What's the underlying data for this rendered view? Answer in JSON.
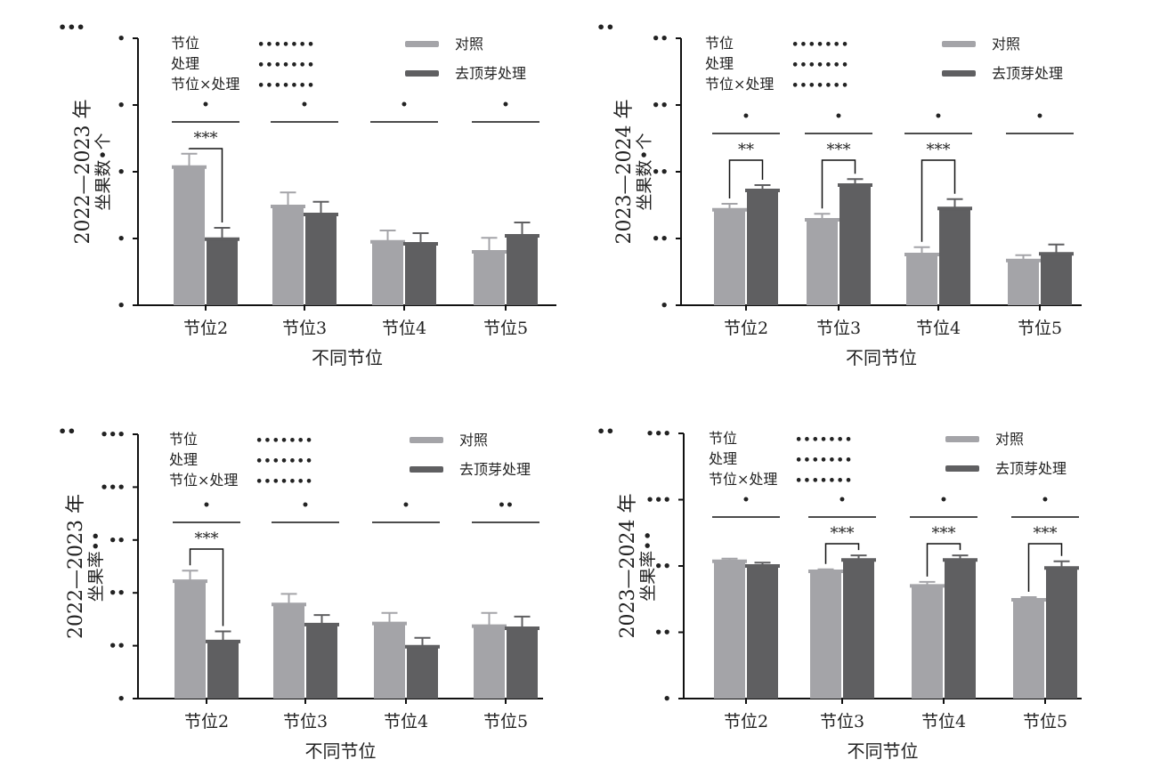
{
  "legend": {
    "control": "对照",
    "treated": "去顶芽处理"
  },
  "colors": {
    "control": "#a4a4a8",
    "treated": "#5f5f61",
    "axis": "#111111"
  },
  "stats_rows": [
    {
      "label": "节位",
      "value": "•••••••"
    },
    {
      "label": "处理",
      "value": "•••••••"
    },
    {
      "label": "节位×处理",
      "value": "•••••••"
    }
  ],
  "chart_data": [
    {
      "type": "bar",
      "panel_label": "•••",
      "ylabel_line1": "2022—2023 年",
      "ylabel_line2": "坐果数•个",
      "xlabel": "不同节位",
      "categories": [
        "节位2",
        "节位3",
        "节位4",
        "节位5"
      ],
      "ytick_labels": [
        "•",
        "•",
        "•",
        "•",
        "•"
      ],
      "ylim_ticks": [
        0,
        4
      ],
      "series": [
        {
          "name": "对照",
          "values": [
            2.07,
            1.48,
            0.95,
            0.8
          ],
          "errors": [
            0.2,
            0.21,
            0.17,
            0.21
          ]
        },
        {
          "name": "去顶芽处理",
          "values": [
            0.99,
            1.36,
            0.92,
            1.04
          ],
          "errors": [
            0.17,
            0.19,
            0.16,
            0.2
          ]
        }
      ],
      "group_letters": [
        "•",
        "•",
        "•",
        "•"
      ],
      "significance": [
        "***",
        "",
        "",
        ""
      ]
    },
    {
      "type": "bar",
      "panel_label": "••",
      "ylabel_line1": "2023—2024 年",
      "ylabel_line2": "坐果数•个",
      "xlabel": "不同节位",
      "categories": [
        "节位2",
        "节位3",
        "节位4",
        "节位5"
      ],
      "ytick_labels": [
        "•",
        "••",
        "••",
        "••",
        "••"
      ],
      "ylim_ticks": [
        0,
        4
      ],
      "series": [
        {
          "name": "对照",
          "values": [
            1.43,
            1.28,
            0.76,
            0.67
          ],
          "errors": [
            0.09,
            0.09,
            0.11,
            0.08
          ]
        },
        {
          "name": "去顶芽处理",
          "values": [
            1.72,
            1.8,
            1.45,
            0.77
          ],
          "errors": [
            0.08,
            0.09,
            0.14,
            0.14
          ]
        }
      ],
      "group_letters": [
        "•",
        "•",
        "•",
        "•"
      ],
      "significance": [
        "**",
        "***",
        "***",
        ""
      ]
    },
    {
      "type": "bar",
      "panel_label": "••",
      "ylabel_line1": "2022—2023 年",
      "ylabel_line2": "坐果率••",
      "xlabel": "不同节位",
      "categories": [
        "节位2",
        "节位3",
        "节位4",
        "节位5"
      ],
      "ytick_labels": [
        "•",
        "••",
        "••",
        "••",
        "•••",
        "•••"
      ],
      "ylim_ticks": [
        0,
        5
      ],
      "series": [
        {
          "name": "对照",
          "values": [
            2.22,
            1.78,
            1.42,
            1.37
          ],
          "errors": [
            0.2,
            0.2,
            0.2,
            0.25
          ]
        },
        {
          "name": "去顶芽处理",
          "values": [
            1.08,
            1.4,
            0.98,
            1.33
          ],
          "errors": [
            0.19,
            0.18,
            0.17,
            0.22
          ]
        }
      ],
      "group_letters": [
        "•",
        "•",
        "•",
        "••"
      ],
      "significance": [
        "***",
        "",
        "",
        ""
      ]
    },
    {
      "type": "bar",
      "panel_label": "••",
      "ylabel_line1": "2023—2024 年",
      "ylabel_line2": "坐果率••",
      "xlabel": "不同节位",
      "categories": [
        "节位2",
        "节位3",
        "节位4",
        "节位5"
      ],
      "ytick_labels": [
        "•",
        "••",
        "••",
        "•••",
        "•••"
      ],
      "ylim_ticks": [
        0,
        4
      ],
      "series": [
        {
          "name": "对照",
          "values": [
            2.07,
            1.92,
            1.7,
            1.49
          ],
          "errors": [
            0.04,
            0.03,
            0.06,
            0.04
          ]
        },
        {
          "name": "去顶芽处理",
          "values": [
            2.0,
            2.09,
            2.09,
            1.97
          ],
          "errors": [
            0.05,
            0.07,
            0.07,
            0.1
          ]
        }
      ],
      "group_letters": [
        "•",
        "•",
        "•",
        "•"
      ],
      "significance": [
        "",
        "***",
        "***",
        "***"
      ]
    }
  ]
}
